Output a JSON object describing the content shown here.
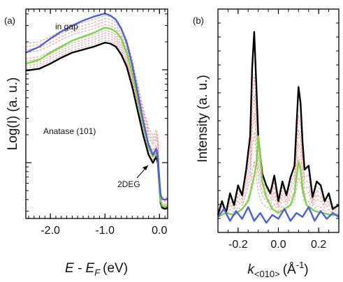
{
  "panel_a_label": "(a)",
  "panel_b_label": "(b)",
  "chart_data": [
    {
      "panel": "(a)",
      "type": "line",
      "xlabel_main": "E - E",
      "xlabel_sub": "F",
      "xlabel_unit": "(eV)",
      "ylabel": "Log(I) (a. u.)",
      "xlim": [
        -2.45,
        0.15
      ],
      "y_scale": "log",
      "y_tick_labels_shown": false,
      "ylim_arbitrary": [
        0,
        1
      ],
      "xticks": [
        -2.0,
        -1.0,
        0.0
      ],
      "xtick_labels": [
        "-2.0",
        "-1.0",
        "0.0"
      ],
      "annotations": [
        "in gap",
        "Anatase (101)",
        "2DEG"
      ],
      "colors": {
        "black": "#000000",
        "green": "#7ed348",
        "blue": "#4b5fd6",
        "dashed": "#e87c7c"
      },
      "series": [
        {
          "color": "black",
          "style": "solid",
          "x": [
            -2.45,
            -2.2,
            -2.0,
            -1.8,
            -1.6,
            -1.4,
            -1.2,
            -1.0,
            -0.9,
            -0.8,
            -0.7,
            -0.6,
            -0.5,
            -0.4,
            -0.3,
            -0.2,
            -0.12,
            -0.06,
            -0.03,
            0.0,
            0.02,
            0.05,
            0.1,
            0.15
          ],
          "y": [
            0.71,
            0.72,
            0.745,
            0.775,
            0.8,
            0.815,
            0.83,
            0.85,
            0.845,
            0.83,
            0.79,
            0.73,
            0.63,
            0.51,
            0.39,
            0.29,
            0.25,
            0.28,
            0.25,
            0.13,
            0.05,
            0.025,
            0.02,
            0.025
          ]
        },
        {
          "color": "green",
          "style": "solid",
          "x": [
            -2.45,
            -2.2,
            -2.0,
            -1.8,
            -1.6,
            -1.4,
            -1.2,
            -1.0,
            -0.9,
            -0.8,
            -0.7,
            -0.6,
            -0.5,
            -0.4,
            -0.3,
            -0.2,
            -0.12,
            -0.06,
            -0.03,
            0.0,
            0.02,
            0.05,
            0.1,
            0.15
          ],
          "y": [
            0.745,
            0.765,
            0.8,
            0.83,
            0.86,
            0.88,
            0.9,
            0.925,
            0.92,
            0.905,
            0.87,
            0.8,
            0.7,
            0.57,
            0.44,
            0.33,
            0.28,
            0.3,
            0.27,
            0.14,
            0.06,
            0.035,
            0.03,
            0.035
          ]
        },
        {
          "color": "blue",
          "style": "solid",
          "x": [
            -2.45,
            -2.2,
            -2.0,
            -1.8,
            -1.6,
            -1.4,
            -1.2,
            -1.0,
            -0.9,
            -0.8,
            -0.7,
            -0.6,
            -0.5,
            -0.4,
            -0.3,
            -0.2,
            -0.12,
            -0.06,
            -0.03,
            0.0,
            0.02,
            0.05,
            0.1,
            0.15
          ],
          "y": [
            0.8,
            0.83,
            0.87,
            0.905,
            0.935,
            0.96,
            0.98,
            0.995,
            0.985,
            0.965,
            0.92,
            0.85,
            0.74,
            0.6,
            0.46,
            0.34,
            0.29,
            0.32,
            0.28,
            0.16,
            0.09,
            0.07,
            0.065,
            0.07
          ]
        },
        {
          "color": "dashed",
          "style": "dashed",
          "offset": 0.012
        },
        {
          "color": "dashed",
          "style": "dashed",
          "offset": 0.024
        },
        {
          "color": "dashed",
          "style": "dashed",
          "offset": 0.036
        },
        {
          "color": "dashed",
          "style": "dashed",
          "offset": 0.048
        },
        {
          "color": "dashed",
          "style": "dashed",
          "offset": 0.06
        },
        {
          "color": "dashed",
          "style": "dashed",
          "offset": 0.09
        },
        {
          "color": "dashed",
          "style": "dashed",
          "offset": 0.105
        },
        {
          "color": "dashed",
          "style": "dashed",
          "offset": 0.12
        },
        {
          "color": "dashed",
          "style": "dashed",
          "offset": 0.135
        }
      ]
    },
    {
      "panel": "(b)",
      "type": "line",
      "xlabel_main": "k",
      "xlabel_sub": "<010>",
      "xlabel_unit": "(Å",
      "xlabel_sup": "-1",
      "xlabel_close": ")",
      "ylabel": "Intensity (a. u.)",
      "xlim": [
        -0.3,
        0.3
      ],
      "y_tick_labels_shown": false,
      "xticks": [
        -0.2,
        0.0,
        0.2
      ],
      "xtick_labels": [
        "-0.2",
        "0.0",
        "0.2"
      ],
      "colors": {
        "black": "#000000",
        "green": "#7ed348",
        "blue": "#4b5fd6",
        "dashed": "#e87c7c"
      },
      "series": [
        {
          "color": "black",
          "style": "solid",
          "x": [
            -0.3,
            -0.28,
            -0.26,
            -0.24,
            -0.22,
            -0.2,
            -0.18,
            -0.16,
            -0.14,
            -0.13,
            -0.12,
            -0.11,
            -0.1,
            -0.09,
            -0.08,
            -0.06,
            -0.04,
            -0.02,
            0.0,
            0.02,
            0.04,
            0.06,
            0.08,
            0.09,
            0.1,
            0.11,
            0.12,
            0.13,
            0.15,
            0.17,
            0.19,
            0.21,
            0.23,
            0.25,
            0.27,
            0.3
          ],
          "y": [
            0.05,
            0.12,
            0.06,
            0.16,
            0.1,
            0.2,
            0.15,
            0.28,
            0.45,
            0.8,
            0.98,
            0.72,
            0.45,
            0.35,
            0.26,
            0.2,
            0.16,
            0.25,
            0.12,
            0.22,
            0.15,
            0.24,
            0.3,
            0.5,
            0.7,
            0.62,
            0.42,
            0.28,
            0.3,
            0.14,
            0.22,
            0.2,
            0.12,
            0.16,
            0.08,
            0.1
          ]
        },
        {
          "color": "green",
          "style": "solid",
          "x": [
            -0.3,
            -0.26,
            -0.22,
            -0.18,
            -0.15,
            -0.13,
            -0.11,
            -0.1,
            -0.09,
            -0.08,
            -0.06,
            -0.03,
            0.0,
            0.03,
            0.06,
            0.08,
            0.1,
            0.11,
            0.12,
            0.14,
            0.18,
            0.22,
            0.26,
            0.3
          ],
          "y": [
            0.04,
            0.06,
            0.05,
            0.08,
            0.12,
            0.2,
            0.3,
            0.45,
            0.35,
            0.22,
            0.14,
            0.08,
            0.06,
            0.08,
            0.1,
            0.16,
            0.32,
            0.28,
            0.18,
            0.1,
            0.07,
            0.06,
            0.05,
            0.05
          ]
        },
        {
          "color": "blue",
          "style": "solid",
          "x": [
            -0.3,
            -0.27,
            -0.24,
            -0.21,
            -0.18,
            -0.15,
            -0.12,
            -0.09,
            -0.06,
            -0.03,
            0.0,
            0.03,
            0.06,
            0.09,
            0.12,
            0.15,
            0.18,
            0.21,
            0.24,
            0.27,
            0.3
          ],
          "y": [
            0.04,
            0.08,
            0.02,
            0.07,
            0.03,
            0.09,
            0.02,
            0.06,
            0.01,
            0.05,
            0.03,
            0.08,
            0.02,
            0.06,
            0.04,
            0.09,
            0.02,
            0.07,
            0.03,
            0.06,
            0.04
          ]
        },
        {
          "color": "dashed",
          "style": "dashed",
          "scale": 0.3
        },
        {
          "color": "dashed",
          "style": "dashed",
          "scale": 0.45
        },
        {
          "color": "dashed",
          "style": "dashed",
          "scale": 0.55
        },
        {
          "color": "dashed",
          "style": "dashed",
          "scale": 0.65
        },
        {
          "color": "dashed",
          "style": "dashed",
          "scale": 0.75
        }
      ]
    }
  ]
}
